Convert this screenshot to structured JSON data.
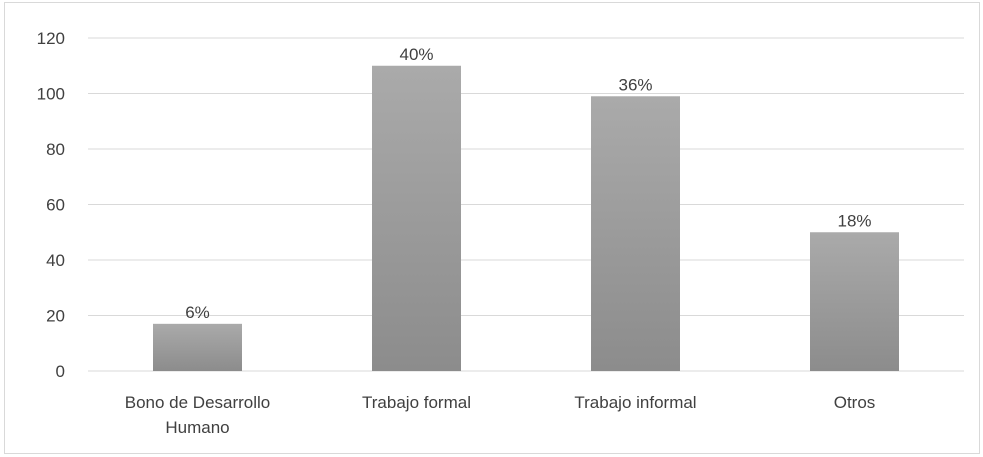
{
  "chart_data": {
    "type": "bar",
    "title": "",
    "xlabel": "",
    "ylabel": "",
    "categories": [
      [
        "Bono de Desarrollo",
        "Humano"
      ],
      [
        "Trabajo formal"
      ],
      [
        "Trabajo informal"
      ],
      [
        "Otros"
      ]
    ],
    "values": [
      17,
      110,
      99,
      50
    ],
    "data_labels": [
      "6%",
      "40%",
      "36%",
      "18%"
    ],
    "ylim": [
      0,
      120
    ],
    "y_ticks": [
      "0",
      "20",
      "40",
      "60",
      "80",
      "100",
      "120"
    ],
    "grid": true,
    "legend": "none",
    "bar_color_top": "#aaaaaa",
    "bar_color_bottom": "#8c8c8c",
    "grid_color": "#d9d9d9",
    "text_color": "#404040"
  }
}
